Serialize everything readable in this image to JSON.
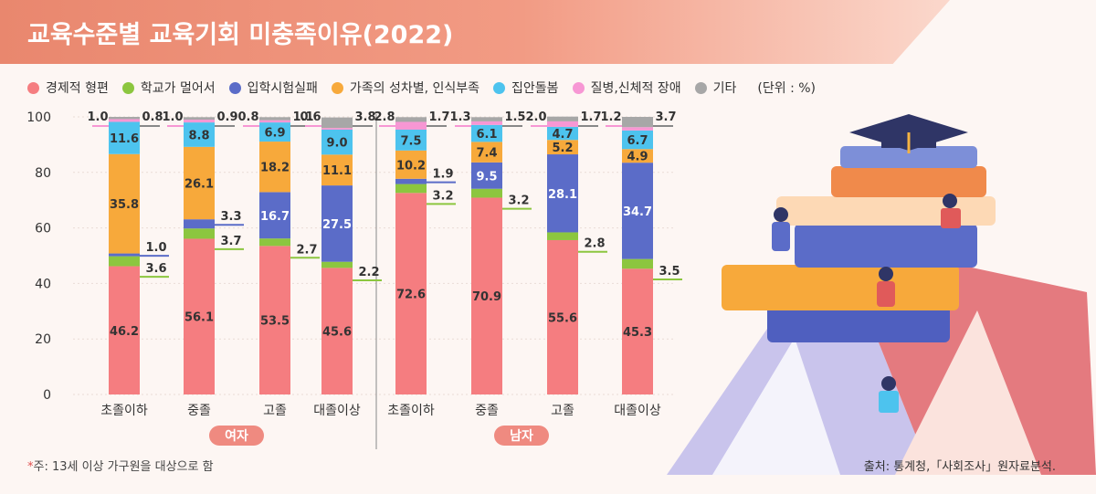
{
  "title": "교육수준별 교육기회 미충족이유(2022)",
  "legend": {
    "items": [
      {
        "label": "경제적 형편",
        "color": "#f57d80"
      },
      {
        "label": "학교가 멀어서",
        "color": "#8cc63f"
      },
      {
        "label": "입학시험실패",
        "color": "#5b6cc8"
      },
      {
        "label": "가족의 성차별, 인식부족",
        "color": "#f7a93b"
      },
      {
        "label": "집안돌봄",
        "color": "#4dc3ee"
      },
      {
        "label": "질병,신체적 장애",
        "color": "#f797d4"
      },
      {
        "label": "기타",
        "color": "#a7a7a7"
      }
    ],
    "unit": "(단위 : %)"
  },
  "chart_data": {
    "type": "bar",
    "stacked": true,
    "ylim": [
      0,
      100
    ],
    "yticks": [
      "0",
      "20",
      "40",
      "60",
      "80",
      "100"
    ],
    "groups": [
      "여자",
      "남자"
    ],
    "categories": [
      "초졸이하",
      "중졸",
      "고졸",
      "대졸이상",
      "초졸이하",
      "중졸",
      "고졸",
      "대졸이상"
    ],
    "series": [
      {
        "name": "경제적 형편",
        "color": "#f57d80",
        "values": [
          46.2,
          56.1,
          53.5,
          45.6,
          72.6,
          70.9,
          55.6,
          45.3
        ]
      },
      {
        "name": "학교가 멀어서",
        "color": "#8cc63f",
        "values": [
          3.6,
          3.7,
          2.7,
          2.2,
          3.2,
          3.2,
          2.8,
          3.5
        ]
      },
      {
        "name": "입학시험실패",
        "color": "#5b6cc8",
        "values": [
          1.0,
          3.3,
          16.7,
          27.5,
          1.9,
          9.5,
          28.1,
          34.7
        ]
      },
      {
        "name": "가족의 성차별, 인식부족",
        "color": "#f7a93b",
        "values": [
          35.8,
          26.1,
          18.2,
          11.1,
          10.2,
          7.4,
          5.2,
          4.9
        ]
      },
      {
        "name": "집안돌봄",
        "color": "#4dc3ee",
        "values": [
          11.6,
          8.8,
          6.9,
          9.0,
          7.5,
          6.1,
          4.7,
          6.7
        ]
      },
      {
        "name": "질병,신체적 장애",
        "color": "#f797d4",
        "values": [
          1.0,
          1.0,
          0.8,
          0.6,
          2.8,
          1.3,
          2.0,
          1.2
        ]
      },
      {
        "name": "기타",
        "color": "#a7a7a7",
        "values": [
          0.8,
          0.9,
          1.1,
          3.8,
          1.7,
          1.5,
          1.7,
          3.7
        ]
      }
    ]
  },
  "footnote": {
    "mark": "*",
    "text": "주: 13세 이상 가구원을 대상으로 함"
  },
  "source": "출처: 통계청,「사회조사」원자료분석."
}
